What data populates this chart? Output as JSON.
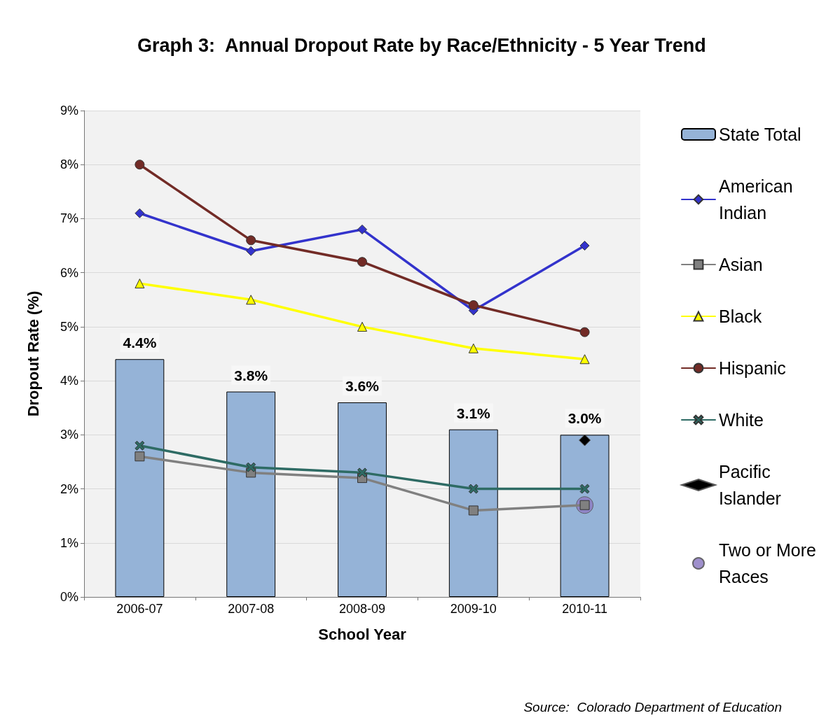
{
  "chart_data": {
    "type": "line",
    "title": "Graph 3:  Annual Dropout Rate by Race/Ethnicity - 5 Year Trend",
    "xlabel": "School Year",
    "ylabel": "Dropout Rate (%)",
    "categories": [
      "2006-07",
      "2007-08",
      "2008-09",
      "2009-10",
      "2010-11"
    ],
    "ylim": [
      0,
      9
    ],
    "yticks": [
      {
        "value": 0,
        "label": "0%"
      },
      {
        "value": 1,
        "label": "1%"
      },
      {
        "value": 2,
        "label": "2%"
      },
      {
        "value": 3,
        "label": "3%"
      },
      {
        "value": 4,
        "label": "4%"
      },
      {
        "value": 5,
        "label": "5%"
      },
      {
        "value": 6,
        "label": "6%"
      },
      {
        "value": 7,
        "label": "7%"
      },
      {
        "value": 8,
        "label": "8%"
      },
      {
        "value": 9,
        "label": "9%"
      }
    ],
    "grid": "y",
    "legend": "right",
    "line_style": "solid",
    "series": [
      {
        "name": "State Total",
        "type": "bar",
        "color": "#95b3d7",
        "values": [
          4.4,
          3.8,
          3.6,
          3.1,
          3.0
        ],
        "value_labels": [
          "4.4%",
          "3.8%",
          "3.6%",
          "3.1%",
          "3.0%"
        ]
      },
      {
        "name": "American Indian",
        "color": "#3333cc",
        "marker": "diamond",
        "values": [
          7.1,
          6.4,
          6.8,
          5.3,
          6.5
        ]
      },
      {
        "name": "Asian",
        "color": "#808080",
        "marker": "square",
        "values": [
          2.6,
          2.3,
          2.2,
          1.6,
          1.7
        ]
      },
      {
        "name": "Black",
        "color": "#ffff00",
        "marker": "triangle",
        "values": [
          5.8,
          5.5,
          5.0,
          4.6,
          4.4
        ]
      },
      {
        "name": "Hispanic",
        "color": "#722b26",
        "marker": "circle",
        "values": [
          8.0,
          6.6,
          6.2,
          5.4,
          4.9
        ]
      },
      {
        "name": "White",
        "color": "#2e6b64",
        "marker": "cross",
        "values": [
          2.8,
          2.4,
          2.3,
          2.0,
          2.0
        ]
      },
      {
        "name": "Pacific Islander",
        "type": "scatter",
        "color": "#000000",
        "marker": "diamond",
        "values": [
          null,
          null,
          null,
          null,
          2.9
        ]
      },
      {
        "name": "Two or More Races",
        "type": "scatter",
        "color": "#8e7cc3",
        "marker": "circle",
        "values": [
          null,
          null,
          null,
          null,
          1.7
        ]
      }
    ],
    "annotations": [
      "Source:  Colorado Department of Education"
    ]
  }
}
